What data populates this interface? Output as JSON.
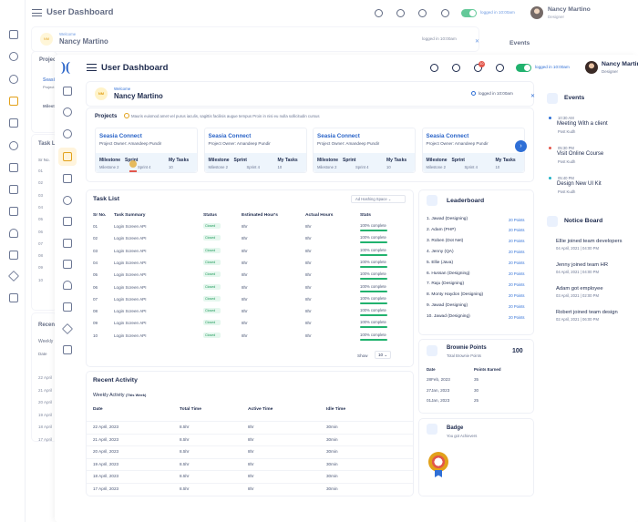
{
  "app": {
    "title": "User Dashboard",
    "logged_in": "logged in 10:00am",
    "notif_count": "10"
  },
  "user": {
    "name": "Nancy Martino",
    "role": "Designer",
    "initials": "NM"
  },
  "welcome": {
    "label": "Welcome",
    "name": "Nancy Martino"
  },
  "projects": {
    "title": "Projects",
    "notice": "Mauris euismod amet vel purus iaculis, sagittis facilisis augue tempus Proin in nisi eu nulla sollicitudin cursus",
    "cards": [
      {
        "name": "Seasia Connect",
        "owner": "Project Owner: Amandeep Pundir",
        "milestone_label": "Milestone",
        "milestone": "Milestone 2",
        "sprint_label": "Sprint",
        "sprint": "Sprint 4",
        "tasks_label": "My Tasks",
        "tasks": "10"
      },
      {
        "name": "Seasia Connect",
        "owner": "Project Owner: Amandeep Pundir",
        "milestone_label": "Milestone",
        "milestone": "Milestone 2",
        "sprint_label": "Sprint",
        "sprint": "Sprint 4",
        "tasks_label": "My Tasks",
        "tasks": "10"
      },
      {
        "name": "Seasia Connect",
        "owner": "Project Owner: Amandeep Pundir",
        "milestone_label": "Milestone",
        "milestone": "Milestone 2",
        "sprint_label": "Sprint",
        "sprint": "Sprint 4",
        "tasks_label": "My Tasks",
        "tasks": "10"
      },
      {
        "name": "Seasia Connect",
        "owner": "Project Owner: Amandeep Pundir",
        "milestone_label": "Milestone",
        "milestone": "Milestone 2",
        "sprint_label": "Sprint",
        "sprint": "Sprint 4",
        "tasks_label": "My Tasks",
        "tasks": "10"
      }
    ]
  },
  "tasks": {
    "title": "Task List",
    "filter": "Ad Hashing Space",
    "headers": [
      "Sr No.",
      "Task Summary",
      "Status",
      "Estimated Hour's",
      "Actual Hours",
      "Stats"
    ],
    "rows": [
      {
        "no": "01",
        "summary": "Login Screen API",
        "status": "Closed",
        "est": "8hr",
        "act": "8hr",
        "stats": "100% complete",
        "pct": 100
      },
      {
        "no": "02",
        "summary": "Login Screen API",
        "status": "Closed",
        "est": "8hr",
        "act": "8hr",
        "stats": "100% complete",
        "pct": 100
      },
      {
        "no": "03",
        "summary": "Login Screen API",
        "status": "Closed",
        "est": "8hr",
        "act": "8hr",
        "stats": "100% complete",
        "pct": 100
      },
      {
        "no": "04",
        "summary": "Login Screen API",
        "status": "Closed",
        "est": "8hr",
        "act": "8hr",
        "stats": "100% complete",
        "pct": 100
      },
      {
        "no": "05",
        "summary": "Login Screen API",
        "status": "Closed",
        "est": "8hr",
        "act": "8hr",
        "stats": "100% complete",
        "pct": 100
      },
      {
        "no": "06",
        "summary": "Login Screen API",
        "status": "Closed",
        "est": "8hr",
        "act": "8hr",
        "stats": "100% complete",
        "pct": 100
      },
      {
        "no": "07",
        "summary": "Login Screen API",
        "status": "Closed",
        "est": "8hr",
        "act": "8hr",
        "stats": "100% complete",
        "pct": 100
      },
      {
        "no": "08",
        "summary": "Login Screen API",
        "status": "Closed",
        "est": "8hr",
        "act": "8hr",
        "stats": "100% complete",
        "pct": 100
      },
      {
        "no": "09",
        "summary": "Login Screen API",
        "status": "Closed",
        "est": "8hr",
        "act": "8hr",
        "stats": "100% complete",
        "pct": 100
      },
      {
        "no": "10",
        "summary": "Login Screen API",
        "status": "Closed",
        "est": "8hr",
        "act": "8hr",
        "stats": "100% complete",
        "pct": 100
      }
    ],
    "show_label": "Show",
    "show_value": "10"
  },
  "activity": {
    "title": "Recent Activity",
    "subtitle": "Weekly Activity",
    "subtitle_note": "(This Week)",
    "headers": [
      "Date",
      "Total Time",
      "Active Time",
      "Idle Time"
    ],
    "rows": [
      {
        "date": "22 April, 2023",
        "total": "8.5hr",
        "active": "8hr",
        "idle": "30min"
      },
      {
        "date": "21 April, 2023",
        "total": "8.5hr",
        "active": "8hr",
        "idle": "30min"
      },
      {
        "date": "20 April, 2023",
        "total": "8.5hr",
        "active": "8hr",
        "idle": "30min"
      },
      {
        "date": "19 April, 2023",
        "total": "8.5hr",
        "active": "8hr",
        "idle": "30min"
      },
      {
        "date": "18 April, 2023",
        "total": "8.5hr",
        "active": "8hr",
        "idle": "30min"
      },
      {
        "date": "17 April, 2023",
        "total": "8.5hr",
        "active": "8hr",
        "idle": "30min"
      }
    ]
  },
  "leaderboard": {
    "title": "Leaderboard",
    "rows": [
      {
        "name": "1. Jawad (Designing)",
        "pts": "20 Points"
      },
      {
        "name": "2. Adam (PHP)",
        "pts": "20 Points"
      },
      {
        "name": "3. Roben (Dot Net)",
        "pts": "20 Points"
      },
      {
        "name": "4. Jenny (QA)",
        "pts": "20 Points"
      },
      {
        "name": "5. Ellie (Java)",
        "pts": "20 Points"
      },
      {
        "name": "6. Hussan (Designing)",
        "pts": "20 Points"
      },
      {
        "name": "7. Raju (Designing)",
        "pts": "20 Points"
      },
      {
        "name": "8. Monty Haydon (Designing)",
        "pts": "20 Points"
      },
      {
        "name": "9. Jawad (Designing)",
        "pts": "20 Points"
      },
      {
        "name": "10. Jawad (Designing)",
        "pts": "20 Points"
      }
    ]
  },
  "brownie": {
    "title": "Brownie Points",
    "subtitle": "Total Brownie Points",
    "total": "100",
    "headers": [
      "Date",
      "Points Earned"
    ],
    "rows": [
      {
        "date": "28Feb, 2023",
        "pts": "35"
      },
      {
        "date": "27Jan, 2023",
        "pts": "30"
      },
      {
        "date": "01Jan, 2023",
        "pts": "25"
      }
    ]
  },
  "badge": {
    "title": "Badge",
    "subtitle": "You got Achievers"
  },
  "events": {
    "title": "Events",
    "items": [
      {
        "time": "10:30 AM",
        "title": "Meeting With a client",
        "sub": "Post Kudh",
        "color": "#2f6fd6"
      },
      {
        "time": "05:30 PM",
        "title": "Visit Online Course",
        "sub": "Post Kudh",
        "color": "#e2574c"
      },
      {
        "time": "05:40 PM",
        "title": "Design New UI Kit",
        "sub": "Post Kudh",
        "color": "#21b2c6"
      }
    ]
  },
  "notice": {
    "title": "Notice Board",
    "items": [
      {
        "title": "Ellie joined team developers",
        "date": "04 April, 2021 | 04:00 PM"
      },
      {
        "title": "Jenny joined team HR",
        "date": "04 April, 2021 | 04:00 PM"
      },
      {
        "title": "Adam got employee",
        "date": "03 April, 2021 | 02:00 PM"
      },
      {
        "title": "Robert joined team design",
        "date": "02 April, 2021 | 06:00 PM"
      }
    ]
  },
  "ghost": {
    "projects_title": "Projec",
    "seasia": "Seasia",
    "project": "Project",
    "milestone": "Milesto",
    "task_title": "Task L",
    "srno": "Sr No.",
    "rows": [
      "01",
      "02",
      "03",
      "04",
      "05",
      "06",
      "07",
      "08",
      "09",
      "10"
    ],
    "recent_title": "Recen",
    "weekly": "Weekly",
    "date": "Date",
    "dates": [
      "22 April",
      "21 April",
      "20 April",
      "19 April",
      "18 April",
      "17 April"
    ]
  },
  "colors": {
    "accent": "#2f6fd6",
    "success": "#21b26e",
    "title": "#1d2a4d"
  }
}
